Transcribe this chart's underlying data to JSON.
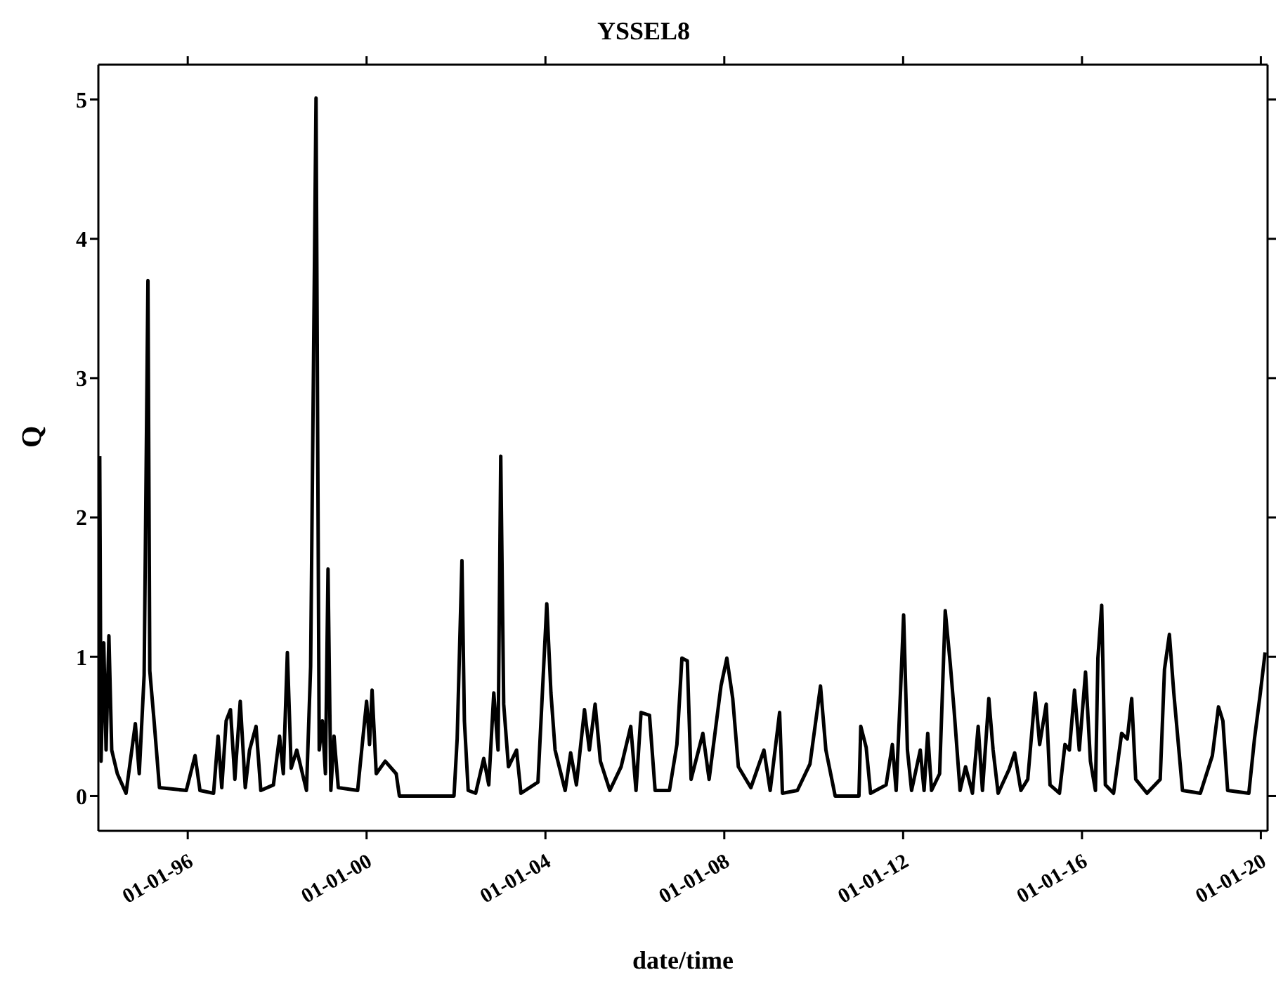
{
  "chart_data": {
    "type": "line",
    "title": "YSSEL8",
    "xlabel": "date/time",
    "ylabel": "Q",
    "x": [
      "1994-01-12",
      "1994-01-23",
      "1994-02-14",
      "1994-03-05",
      "1994-03-28",
      "1994-04-20",
      "1994-06-05",
      "1994-08-15",
      "1994-10-30",
      "1994-12-01",
      "1995-01-10",
      "1995-02-10",
      "1995-02-25",
      "1995-04-01",
      "1995-05-15",
      "1995-12-20",
      "1996-03-01",
      "1996-04-10",
      "1996-07-30",
      "1996-09-05",
      "1996-10-05",
      "1996-11-10",
      "1996-12-15",
      "1997-01-20",
      "1997-03-05",
      "1997-04-15",
      "1997-05-20",
      "1997-07-12",
      "1997-08-20",
      "1997-12-01",
      "1998-01-20",
      "1998-02-20",
      "1998-03-25",
      "1998-04-25",
      "1998-06-10",
      "1998-08-28",
      "1998-10-01",
      "1998-11-14",
      "1998-12-10",
      "1999-01-05",
      "1999-01-30",
      "1999-02-20",
      "1999-03-15",
      "1999-04-10",
      "1999-05-15",
      "1999-10-20",
      "2000-01-01",
      "2000-01-25",
      "2000-02-15",
      "2000-03-20",
      "2000-06-01",
      "2000-08-30",
      "2000-09-25",
      "2001-12-15",
      "2002-01-10",
      "2002-02-18",
      "2002-03-10",
      "2002-04-10",
      "2002-06-10",
      "2002-08-15",
      "2002-09-25",
      "2002-11-05",
      "2002-12-10",
      "2003-01-01",
      "2003-01-25",
      "2003-03-05",
      "2003-05-10",
      "2003-06-15",
      "2003-11-01",
      "2004-01-12",
      "2004-02-15",
      "2004-03-20",
      "2004-06-10",
      "2004-07-25",
      "2004-09-10",
      "2004-11-15",
      "2004-12-25",
      "2005-02-10",
      "2005-03-25",
      "2005-06-10",
      "2005-09-10",
      "2005-11-28",
      "2006-01-10",
      "2006-02-20",
      "2006-04-30",
      "2006-06-15",
      "2006-10-10",
      "2006-12-10",
      "2007-01-20",
      "2007-03-05",
      "2007-04-05",
      "2007-07-10",
      "2007-08-30",
      "2007-12-05",
      "2008-01-22",
      "2008-03-10",
      "2008-04-25",
      "2008-08-05",
      "2008-11-20",
      "2009-01-10",
      "2009-03-28",
      "2009-04-20",
      "2009-08-20",
      "2009-12-01",
      "2010-02-25",
      "2010-04-10",
      "2010-06-25",
      "2011-01-05",
      "2011-01-20",
      "2011-03-05",
      "2011-04-10",
      "2011-08-15",
      "2011-10-05",
      "2011-11-05",
      "2011-12-10",
      "2012-01-05",
      "2012-02-05",
      "2012-03-10",
      "2012-05-20",
      "2012-06-20",
      "2012-07-20",
      "2012-08-20",
      "2012-10-25",
      "2012-12-10",
      "2013-01-20",
      "2013-02-20",
      "2013-04-10",
      "2013-05-25",
      "2013-07-20",
      "2013-09-05",
      "2013-10-10",
      "2013-12-01",
      "2014-01-05",
      "2014-02-15",
      "2014-05-15",
      "2014-06-30",
      "2014-08-20",
      "2014-10-15",
      "2014-12-15",
      "2015-01-20",
      "2015-03-15",
      "2015-04-15",
      "2015-07-01",
      "2015-08-15",
      "2015-09-20",
      "2015-11-01",
      "2015-12-10",
      "2016-01-30",
      "2016-03-10",
      "2016-04-20",
      "2016-05-10",
      "2016-06-10",
      "2016-07-10",
      "2016-09-15",
      "2016-11-20",
      "2017-01-05",
      "2017-02-10",
      "2017-03-15",
      "2017-06-15",
      "2017-10-01",
      "2017-11-05",
      "2017-12-15",
      "2018-01-20",
      "2018-04-01",
      "2018-08-25",
      "2018-12-01",
      "2019-01-20",
      "2019-02-25",
      "2019-04-05",
      "2019-09-25",
      "2019-11-10",
      "2019-12-28",
      "2020-02-05"
    ],
    "series": [
      {
        "color": "#000000",
        "values": [
          2.44,
          0.25,
          1.1,
          0.33,
          1.15,
          0.33,
          0.16,
          0.02,
          0.52,
          0.16,
          0.87,
          3.7,
          0.9,
          0.54,
          0.06,
          0.04,
          0.29,
          0.04,
          0.02,
          0.43,
          0.06,
          0.54,
          0.62,
          0.12,
          0.68,
          0.06,
          0.33,
          0.5,
          0.04,
          0.08,
          0.43,
          0.16,
          1.03,
          0.2,
          0.33,
          0.04,
          0.93,
          5.01,
          0.33,
          0.54,
          0.16,
          1.63,
          0.04,
          0.43,
          0.06,
          0.04,
          0.68,
          0.37,
          0.76,
          0.16,
          0.25,
          0.16,
          0,
          0,
          0.41,
          1.69,
          0.54,
          0.04,
          0.02,
          0.27,
          0.08,
          0.74,
          0.33,
          2.44,
          0.66,
          0.21,
          0.33,
          0.02,
          0.1,
          1.38,
          0.74,
          0.33,
          0.04,
          0.31,
          0.08,
          0.62,
          0.33,
          0.66,
          0.25,
          0.04,
          0.21,
          0.5,
          0.04,
          0.6,
          0.58,
          0.04,
          0.04,
          0.37,
          0.99,
          0.97,
          0.12,
          0.45,
          0.12,
          0.79,
          0.99,
          0.7,
          0.21,
          0.06,
          0.33,
          0.04,
          0.6,
          0.02,
          0.04,
          0.23,
          0.79,
          0.33,
          0,
          0,
          0.5,
          0.35,
          0.02,
          0.08,
          0.37,
          0.04,
          0.74,
          1.3,
          0.33,
          0.04,
          0.33,
          0.04,
          0.45,
          0.04,
          0.16,
          1.33,
          0.95,
          0.62,
          0.04,
          0.21,
          0.02,
          0.5,
          0.04,
          0.7,
          0.33,
          0.02,
          0.19,
          0.31,
          0.04,
          0.12,
          0.74,
          0.37,
          0.66,
          0.08,
          0.02,
          0.37,
          0.33,
          0.76,
          0.33,
          0.89,
          0.25,
          0.04,
          0.99,
          1.37,
          0.08,
          0.02,
          0.45,
          0.41,
          0.7,
          0.12,
          0.02,
          0.12,
          0.91,
          1.16,
          0.74,
          0.04,
          0.02,
          0.29,
          0.64,
          0.54,
          0.04,
          0.02,
          0.41,
          0.74,
          1.03
        ]
      }
    ],
    "xlim": [
      "1994-01-01",
      "2020-02-25"
    ],
    "xticks": [
      {
        "value": "1996-01-01",
        "label": "01-01-96"
      },
      {
        "value": "2000-01-01",
        "label": "01-01-00"
      },
      {
        "value": "2004-01-01",
        "label": "01-01-04"
      },
      {
        "value": "2008-01-01",
        "label": "01-01-08"
      },
      {
        "value": "2012-01-01",
        "label": "01-01-12"
      },
      {
        "value": "2016-01-01",
        "label": "01-01-16"
      },
      {
        "value": "2020-01-01",
        "label": "01-01-20"
      }
    ],
    "ylim": [
      -0.25,
      5.25
    ],
    "yticks": [
      0,
      1,
      2,
      3,
      4,
      5
    ],
    "grid": false,
    "legend": false,
    "marker": "none",
    "line_style": "solid"
  }
}
